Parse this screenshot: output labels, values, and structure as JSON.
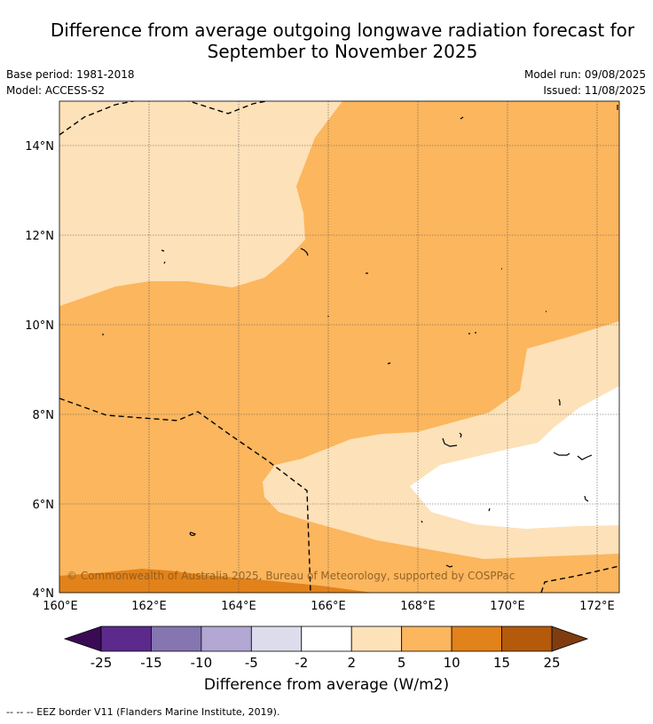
{
  "title_line1": "Difference from average outgoing longwave radiation forecast for",
  "title_line2": "September to November 2025",
  "base_period": "Base period: 1981-2018",
  "model": "Model: ACCESS-S2",
  "model_run": "Model run: 09/08/2025",
  "issued": "Issued: 11/08/2025",
  "copyright": "© Commonwealth of Australia 2025, Bureau of Meteorology, supported by COSPPac",
  "colorbar": {
    "label": "Difference from average (W/m2)",
    "ticks": [
      "-25",
      "-15",
      "-10",
      "-5",
      "-2",
      "2",
      "5",
      "10",
      "15",
      "25"
    ],
    "colors": [
      "#5b2a8c",
      "#8575b0",
      "#b2a8d3",
      "#dcdcec",
      "#ffffff",
      "#fde1b8",
      "#fbb65e",
      "#e2821a",
      "#b45a0a"
    ],
    "low_extend_color": "#3b0a55",
    "high_extend_color": "#7f3d0f"
  },
  "x_ticks": [
    "160°E",
    "162°E",
    "164°E",
    "166°E",
    "168°E",
    "170°E",
    "172°E"
  ],
  "y_ticks": [
    "14°N",
    "12°N",
    "10°N",
    "8°N",
    "6°N",
    "4°N"
  ],
  "legend_eez": "--  --  -- EEZ border V11 (Flanders Marine Institute, 2019)."
}
